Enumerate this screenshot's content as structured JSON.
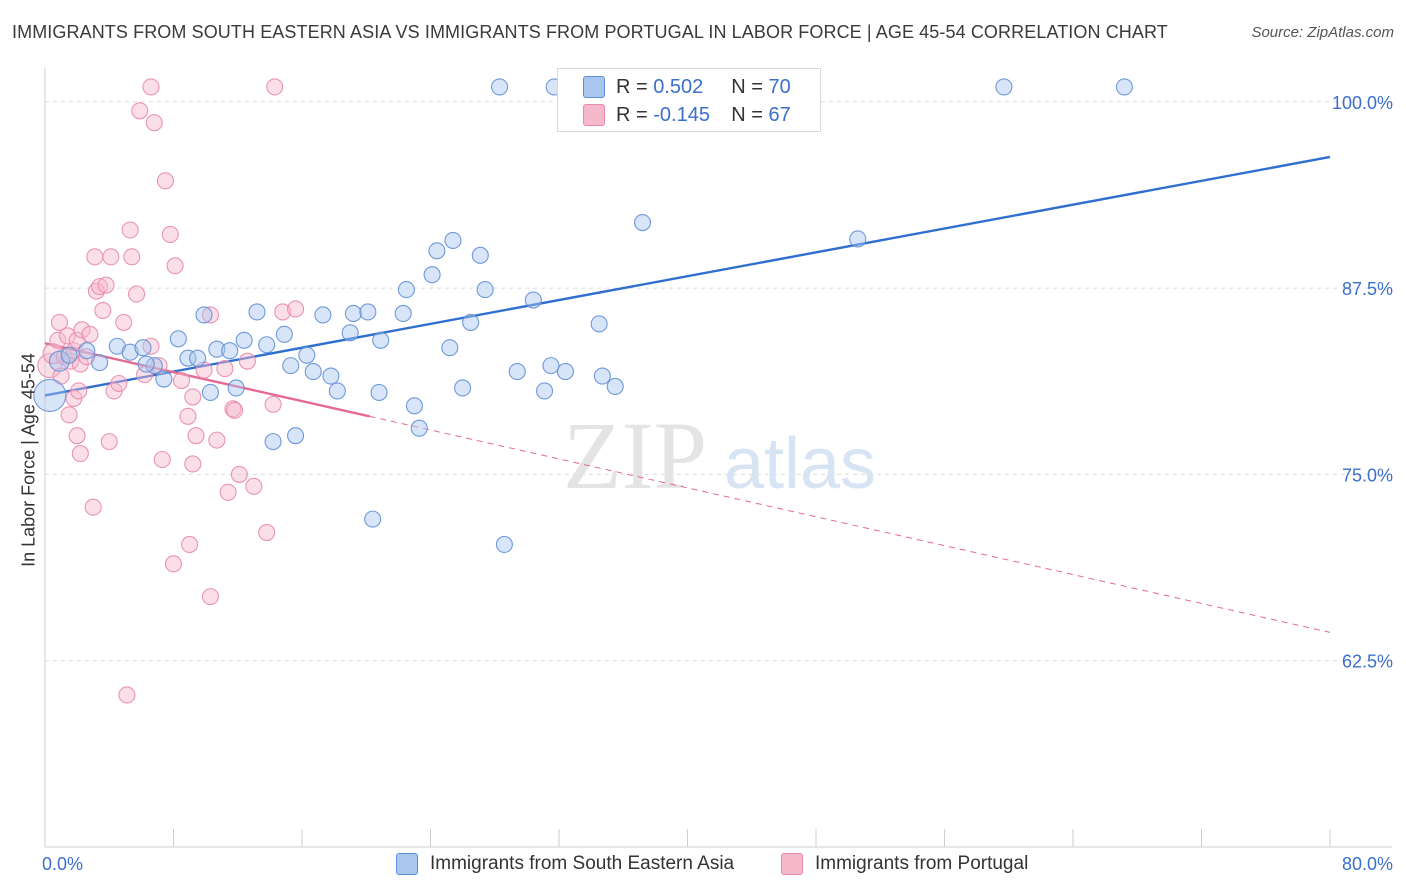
{
  "header": {
    "title": "IMMIGRANTS FROM SOUTH EASTERN ASIA VS IMMIGRANTS FROM PORTUGAL IN LABOR FORCE | AGE 45-54 CORRELATION CHART",
    "source": "Source: ZipAtlas.com"
  },
  "watermark": {
    "zip": "ZIP",
    "atlas": "atlas"
  },
  "legend_top": {
    "rows": [
      {
        "r_label": "R =",
        "r_value": "0.502",
        "n_label": "N =",
        "n_value": "70"
      },
      {
        "r_label": "R =",
        "r_value": "-0.145",
        "n_label": "N =",
        "n_value": "67"
      }
    ]
  },
  "colors": {
    "blue_fill": "#a9c6ef",
    "blue_stroke": "#5f8fd6",
    "blue_line": "#2f6fcf",
    "pink_fill": "#f6b8cb",
    "pink_stroke": "#e88aa8",
    "pink_line": "#e56a90",
    "axis_label": "#3b6fcc",
    "grid": "#dcdcdc"
  },
  "chart_data": {
    "type": "scatter",
    "title": "IMMIGRANTS FROM SOUTH EASTERN ASIA VS IMMIGRANTS FROM PORTUGAL IN LABOR FORCE | AGE 45-54 CORRELATION CHART",
    "xlabel": "",
    "ylabel": "In Labor Force | Age 45-54",
    "xlim": [
      0,
      80
    ],
    "ylim": [
      50,
      101.8
    ],
    "x_tick_labels": [
      "0.0%",
      "80.0%"
    ],
    "y_ticks": [
      {
        "value": 100.0,
        "label": "100.0%"
      },
      {
        "value": 87.5,
        "label": "87.5%"
      },
      {
        "value": 75.0,
        "label": "75.0%"
      },
      {
        "value": 62.5,
        "label": "62.5%"
      }
    ],
    "legend_position": "top-center",
    "series": [
      {
        "name": "Immigrants from South Eastern Asia",
        "color": "#a9c6ef",
        "R": 0.502,
        "N": 70,
        "trend": {
          "x": [
            0,
            80
          ],
          "y": [
            80.3,
            96.3
          ],
          "style": "solid"
        },
        "points": [
          [
            0.3,
            80.3,
            16
          ],
          [
            0.9,
            82.6,
            10
          ],
          [
            1.5,
            83.0,
            8
          ],
          [
            2.6,
            83.3,
            8
          ],
          [
            3.4,
            82.5,
            8
          ],
          [
            4.5,
            83.6,
            8
          ],
          [
            5.3,
            83.2,
            8
          ],
          [
            6.1,
            83.5,
            8
          ],
          [
            6.8,
            82.3,
            8
          ],
          [
            6.3,
            82.4,
            8
          ],
          [
            7.4,
            81.4,
            8
          ],
          [
            8.3,
            84.1,
            8
          ],
          [
            8.9,
            82.8,
            8
          ],
          [
            9.5,
            82.8,
            8
          ],
          [
            9.9,
            85.7,
            8
          ],
          [
            10.3,
            80.5,
            8
          ],
          [
            10.7,
            83.4,
            8
          ],
          [
            11.5,
            83.3,
            8
          ],
          [
            11.9,
            80.8,
            8
          ],
          [
            12.4,
            84.0,
            8
          ],
          [
            13.2,
            85.9,
            8
          ],
          [
            13.8,
            83.7,
            8
          ],
          [
            14.2,
            77.2,
            8
          ],
          [
            14.9,
            84.4,
            8
          ],
          [
            15.3,
            82.3,
            8
          ],
          [
            15.6,
            77.6,
            8
          ],
          [
            16.3,
            83.0,
            8
          ],
          [
            16.7,
            81.9,
            8
          ],
          [
            17.3,
            85.7,
            8
          ],
          [
            17.8,
            81.6,
            8
          ],
          [
            18.2,
            80.6,
            8
          ],
          [
            19.0,
            84.5,
            8
          ],
          [
            19.2,
            85.8,
            8
          ],
          [
            20.1,
            85.9,
            8
          ],
          [
            20.4,
            72.0,
            8
          ],
          [
            20.8,
            80.5,
            8
          ],
          [
            20.9,
            84.0,
            8
          ],
          [
            22.3,
            85.8,
            8
          ],
          [
            22.5,
            87.4,
            8
          ],
          [
            23.0,
            79.6,
            8
          ],
          [
            23.3,
            78.1,
            8
          ],
          [
            24.1,
            88.4,
            8
          ],
          [
            24.4,
            90.0,
            8
          ],
          [
            25.2,
            83.5,
            8
          ],
          [
            25.4,
            90.7,
            8
          ],
          [
            26.0,
            80.8,
            8
          ],
          [
            26.5,
            85.2,
            8
          ],
          [
            27.1,
            89.7,
            8
          ],
          [
            27.4,
            87.4,
            8
          ],
          [
            28.6,
            70.3,
            8
          ],
          [
            29.4,
            81.9,
            8
          ],
          [
            30.4,
            86.7,
            8
          ],
          [
            31.1,
            80.6,
            8
          ],
          [
            31.5,
            82.3,
            8
          ],
          [
            32.4,
            81.9,
            8
          ],
          [
            34.5,
            85.1,
            8
          ],
          [
            34.7,
            81.6,
            8
          ],
          [
            35.5,
            80.9,
            8
          ],
          [
            37.2,
            91.9,
            8
          ],
          [
            50.6,
            90.8,
            8
          ],
          [
            28.3,
            101.0,
            8
          ],
          [
            31.7,
            101.0,
            8
          ],
          [
            59.7,
            101.0,
            8
          ],
          [
            67.2,
            101.0,
            8
          ]
        ]
      },
      {
        "name": "Immigrants from Portugal",
        "color": "#f6b8cb",
        "R": -0.145,
        "N": 67,
        "trend": {
          "x": [
            0,
            20.2,
            80
          ],
          "y": [
            83.8,
            78.9,
            64.4
          ],
          "style": "solid-then-dashed"
        },
        "points": [
          [
            0.3,
            82.3,
            12
          ],
          [
            0.5,
            83.1,
            10
          ],
          [
            0.8,
            84.0,
            8
          ],
          [
            1.0,
            81.6,
            8
          ],
          [
            1.2,
            82.9,
            8
          ],
          [
            1.4,
            84.3,
            8
          ],
          [
            1.6,
            82.6,
            8
          ],
          [
            1.8,
            83.3,
            8
          ],
          [
            2.0,
            84.0,
            8
          ],
          [
            2.2,
            82.4,
            8
          ],
          [
            0.9,
            85.2,
            8
          ],
          [
            1.5,
            79.0,
            8
          ],
          [
            1.8,
            80.1,
            8
          ],
          [
            2.1,
            80.6,
            8
          ],
          [
            2.3,
            84.7,
            8
          ],
          [
            2.6,
            82.9,
            8
          ],
          [
            2.8,
            84.4,
            8
          ],
          [
            3.1,
            89.6,
            8
          ],
          [
            3.2,
            87.3,
            8
          ],
          [
            3.6,
            86.0,
            8
          ],
          [
            3.4,
            87.6,
            8
          ],
          [
            3.8,
            87.7,
            8
          ],
          [
            4.1,
            89.6,
            8
          ],
          [
            4.3,
            80.6,
            8
          ],
          [
            4.6,
            81.1,
            8
          ],
          [
            4.9,
            85.2,
            8
          ],
          [
            5.3,
            91.4,
            8
          ],
          [
            5.4,
            89.6,
            8
          ],
          [
            5.7,
            87.1,
            8
          ],
          [
            6.2,
            81.7,
            8
          ],
          [
            6.6,
            83.6,
            8
          ],
          [
            7.1,
            82.3,
            8
          ],
          [
            7.5,
            94.7,
            8
          ],
          [
            7.8,
            91.1,
            8
          ],
          [
            8.1,
            89.0,
            8
          ],
          [
            8.5,
            81.3,
            8
          ],
          [
            8.9,
            78.9,
            8
          ],
          [
            9.2,
            80.2,
            8
          ],
          [
            9.4,
            77.6,
            8
          ],
          [
            9.9,
            82.0,
            8
          ],
          [
            10.3,
            85.7,
            8
          ],
          [
            10.7,
            77.3,
            8
          ],
          [
            11.2,
            82.1,
            8
          ],
          [
            11.7,
            79.4,
            8
          ],
          [
            12.1,
            75.0,
            8
          ],
          [
            12.6,
            82.6,
            8
          ],
          [
            13.8,
            71.1,
            8
          ],
          [
            14.2,
            79.7,
            8
          ],
          [
            14.8,
            85.9,
            8
          ],
          [
            15.6,
            86.1,
            8
          ],
          [
            2.0,
            77.6,
            8
          ],
          [
            2.2,
            76.4,
            8
          ],
          [
            3.0,
            72.8,
            8
          ],
          [
            4.0,
            77.2,
            8
          ],
          [
            7.3,
            76.0,
            8
          ],
          [
            8.0,
            69.0,
            8
          ],
          [
            9.0,
            70.3,
            8
          ],
          [
            10.3,
            66.8,
            8
          ],
          [
            11.4,
            73.8,
            8
          ],
          [
            13.0,
            74.2,
            8
          ],
          [
            5.1,
            60.2,
            8
          ],
          [
            5.9,
            99.4,
            8
          ],
          [
            6.6,
            101.0,
            8
          ],
          [
            14.3,
            101.0,
            8
          ],
          [
            6.8,
            98.6,
            8
          ],
          [
            9.2,
            75.7,
            8
          ],
          [
            11.8,
            79.3,
            8
          ]
        ]
      }
    ]
  },
  "bottom_legend": {
    "items": [
      {
        "label": "Immigrants from South Eastern Asia"
      },
      {
        "label": "Immigrants from Portugal"
      }
    ]
  }
}
